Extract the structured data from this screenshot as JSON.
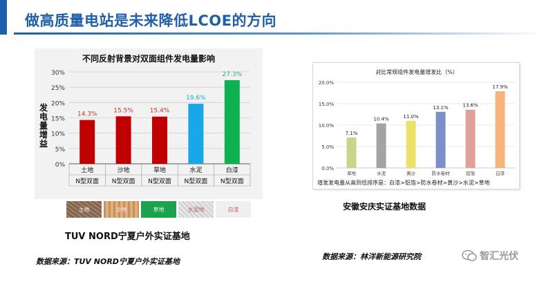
{
  "header": {
    "title": "做高质量电站是未来降低LCOE的方向"
  },
  "left_panel": {
    "caption": "TUV NORD宁夏户外实证基地",
    "footnote": "数据来源：TUV NORD宁夏户外实证基地",
    "surface_swatches": [
      {
        "label": "土地",
        "color": "#8b6f57"
      },
      {
        "label": "沙地",
        "color": "#d9a36d"
      },
      {
        "label": "草地",
        "color": "#1aa34a"
      },
      {
        "label": "水泥地",
        "color": "#d8d8d8"
      },
      {
        "label": "白漆",
        "color": "#efefef"
      }
    ]
  },
  "right_panel": {
    "caption": "安徽安庆实证基地数据",
    "note": "增发发电量从高到低排序是：白漆>铝箔>防水卷材>黄沙>水泥>草地",
    "footnote": "数据来源：林洋新能源研究院"
  },
  "watermark": {
    "text": "智汇光伏"
  },
  "chart_data": [
    {
      "type": "bar",
      "title": "不同反射背景对双面组件发电量影响",
      "ylabel": "发电量增益",
      "categories": [
        "土地",
        "沙地",
        "草地",
        "水泥",
        "白漆"
      ],
      "sub_label": "N型双面",
      "values": [
        14.3,
        15.5,
        15.4,
        19.6,
        27.3
      ],
      "value_labels": [
        "14.3%",
        "15.5%",
        "15.4%",
        "19.6%",
        "27.3%"
      ],
      "bar_colors": [
        "#c00000",
        "#c00000",
        "#c00000",
        "#1aa7e8",
        "#0fb04f"
      ],
      "label_colors": [
        "#c0392b",
        "#c0392b",
        "#c0392b",
        "#1aa7e8",
        "#19b36b"
      ],
      "ylim": [
        0,
        30
      ],
      "yticks": [
        "0%",
        "5%",
        "10%",
        "15%",
        "20%",
        "25%",
        "30%"
      ],
      "grid": true
    },
    {
      "type": "bar",
      "title": "对比常规组件发电量增发比（%）",
      "categories": [
        "草地",
        "水泥",
        "黄沙",
        "防水卷材",
        "铝箔",
        "白漆"
      ],
      "values": [
        7.1,
        10.4,
        11.0,
        13.1,
        13.6,
        17.9
      ],
      "value_labels": [
        "7.1%",
        "10.4%",
        "11.0%",
        "13.1%",
        "13.6%",
        "17.9%"
      ],
      "bar_colors": [
        "#c9d68a",
        "#a3a3a3",
        "#ece26a",
        "#7d8fc8",
        "#e0a19a",
        "#f7b57a"
      ],
      "ylim": [
        0,
        20
      ],
      "yticks": [
        "0.0%",
        "5.0%",
        "10.0%",
        "15.0%",
        "20.0%"
      ],
      "grid": true
    }
  ]
}
